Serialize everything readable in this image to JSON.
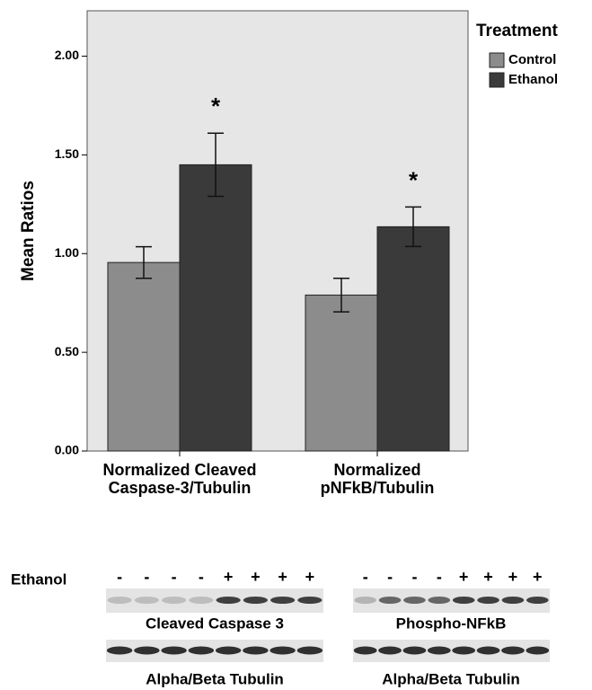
{
  "chart_data": {
    "type": "bar",
    "categories": [
      "Normalized Cleaved Caspase-3/Tubulin",
      "Normalized pNFkB/Tubulin"
    ],
    "series": [
      {
        "name": "Control",
        "color": "#8c8c8c",
        "values": [
          0.955,
          0.79
        ],
        "errors": [
          0.08,
          0.085
        ]
      },
      {
        "name": "Ethanol",
        "color": "#3a3a3a",
        "values": [
          1.45,
          1.136
        ],
        "errors": [
          0.16,
          0.1
        ]
      }
    ],
    "ylabel": "Mean Ratios",
    "legend_title": "Treatment",
    "annotations": [
      "*",
      "*"
    ],
    "ylim": [
      0,
      2.23
    ],
    "yticks": [
      {
        "value": 0,
        "label": "0.00"
      },
      {
        "value": 0.5,
        "label": "0.50"
      },
      {
        "value": 1,
        "label": "1.00"
      },
      {
        "value": 1.5,
        "label": "1.50"
      },
      {
        "value": 2,
        "label": "2.00"
      }
    ],
    "grid": false
  },
  "blot": {
    "row_label": "Ethanol",
    "panels": [
      {
        "lanes": [
          "-",
          "-",
          "-",
          "-",
          "+",
          "+",
          "+",
          "+"
        ],
        "caption": "Cleaved Caspase 3",
        "loading_caption": "Alpha/Beta Tubulin"
      },
      {
        "lanes": [
          "-",
          "-",
          "-",
          "-",
          "+",
          "+",
          "+",
          "+"
        ],
        "caption": "Phospho-NFkB",
        "loading_caption": "Alpha/Beta Tubulin"
      }
    ]
  }
}
